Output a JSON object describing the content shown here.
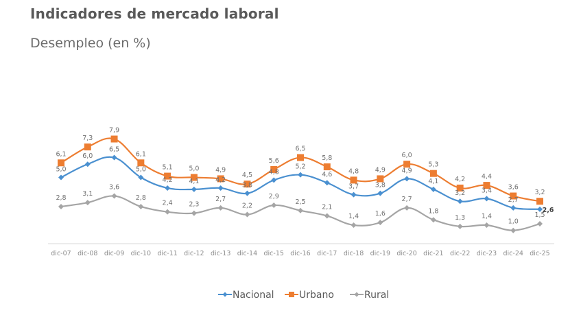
{
  "header": {
    "title": "Indicadores de mercado laboral",
    "subtitle": "Desempleo (en %)"
  },
  "chart_data": {
    "type": "line",
    "title": "Desempleo (en %)",
    "xlabel": "",
    "ylabel": "",
    "ylim": [
      0,
      8.5
    ],
    "grid": false,
    "legend": "bottom-center",
    "categories": [
      "dic-07",
      "dic-08",
      "dic-09",
      "dic-10",
      "dic-11",
      "dic-12",
      "dic-13",
      "dic-14",
      "dic-15",
      "dic-16",
      "dic-17",
      "dic-18",
      "dic-19",
      "dic-20",
      "dic-21",
      "dic-22",
      "dic-23",
      "dic-24",
      "dic-25"
    ],
    "series": [
      {
        "name": "Nacional",
        "color": "#4a90d0",
        "marker": "diamond",
        "values": [
          5.0,
          6.0,
          6.5,
          5.0,
          4.2,
          4.1,
          4.2,
          3.8,
          4.8,
          5.2,
          4.6,
          3.7,
          3.8,
          4.9,
          4.1,
          3.2,
          3.4,
          2.7,
          2.6
        ],
        "labels": [
          "5,0",
          "6,0",
          "6,5",
          "5,0",
          "4,2",
          "4,1",
          "4,2",
          "3,8",
          "4,8",
          "5,2",
          "4,6",
          "3,7",
          "3,8",
          "4,9",
          "4,1",
          "3,2",
          "3,4",
          "2,7",
          "2,6"
        ]
      },
      {
        "name": "Urbano",
        "color": "#ed7d31",
        "marker": "square",
        "values": [
          6.1,
          7.3,
          7.9,
          6.1,
          5.1,
          5.0,
          4.9,
          4.5,
          5.6,
          6.5,
          5.8,
          4.8,
          4.9,
          6.0,
          5.3,
          4.2,
          4.4,
          3.6,
          3.2
        ],
        "labels": [
          "6,1",
          "7,3",
          "7,9",
          "6,1",
          "5,1",
          "5,0",
          "4,9",
          "4,5",
          "5,6",
          "6,5",
          "5,8",
          "4,8",
          "4,9",
          "6,0",
          "5,3",
          "4,2",
          "4,4",
          "3,6",
          "3,2"
        ]
      },
      {
        "name": "Rural",
        "color": "#a5a5a5",
        "marker": "diamond",
        "values": [
          2.8,
          3.1,
          3.6,
          2.8,
          2.4,
          2.3,
          2.7,
          2.2,
          2.9,
          2.5,
          2.1,
          1.4,
          1.6,
          2.7,
          1.8,
          1.3,
          1.4,
          1.0,
          1.5
        ],
        "labels": [
          "2,8",
          "3,1",
          "3,6",
          "2,8",
          "2,4",
          "2,3",
          "2,7",
          "2,2",
          "2,9",
          "2,5",
          "2,1",
          "1,4",
          "1,6",
          "2,7",
          "1,8",
          "1,3",
          "1,4",
          "1,0",
          "1,5"
        ]
      }
    ]
  }
}
